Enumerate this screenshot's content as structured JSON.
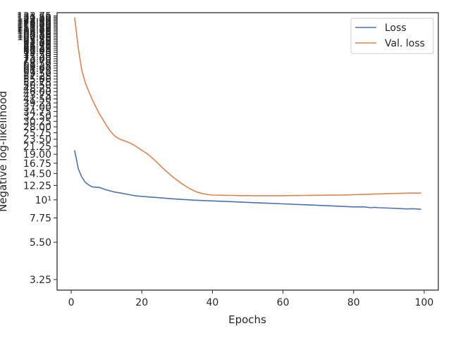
{
  "chart_data": {
    "type": "line",
    "xlabel": "Epochs",
    "ylabel": "Negative log-likelihood",
    "xlim": [
      -4,
      104
    ],
    "ylim": [
      2.8,
      140
    ],
    "yscale": "log",
    "grid": false,
    "legend_position": "top-right",
    "x_ticks": [
      0,
      20,
      40,
      60,
      80,
      100
    ],
    "x_tick_labels": [
      "0",
      "20",
      "40",
      "60",
      "80",
      "100"
    ],
    "y_ticks": [
      3.25,
      5.5,
      7.75,
      10,
      12.25,
      14.5,
      16.75,
      19,
      21.25,
      23.5,
      25.75,
      28,
      30.25,
      32.5,
      34.75,
      37,
      39.25,
      41.5,
      43.75,
      46,
      48.25,
      50.5,
      52.75,
      55,
      57.25,
      59.5,
      61.75,
      64,
      66.25,
      68.5,
      70.75,
      73,
      75.25,
      77.5,
      79.75,
      82,
      84.25,
      86.5,
      88.75,
      91,
      93.25,
      95.5,
      97.75,
      100,
      102.25,
      104.5,
      106.75,
      109,
      111.25,
      113.5,
      115.75,
      118,
      120.25,
      122.5,
      124.75,
      127,
      129.25,
      131.5,
      133.75
    ],
    "y_tick_labels": [
      "3.25",
      "5.50",
      "7.75",
      "10¹",
      "12.25",
      "14.50",
      "16.75",
      "19.00",
      "21.25",
      "23.50",
      "25.75",
      "28.00",
      "30.25",
      "32.50",
      "34.75",
      "37.00",
      "39.25",
      "41.50",
      "43.75",
      "46.00",
      "48.25",
      "50.50",
      "52.75",
      "55.00",
      "57.25",
      "59.50",
      "61.75",
      "64.00",
      "66.25",
      "68.50",
      "70.75",
      "73.00",
      "75.25",
      "77.50",
      "79.75",
      "82.00",
      "84.25",
      "86.50",
      "88.75",
      "91.00",
      "93.25",
      "95.50",
      "97.75",
      "100.00",
      "102.25",
      "104.50",
      "106.75",
      "109.00",
      "111.25",
      "113.50",
      "115.75",
      "118.00",
      "120.25",
      "122.50",
      "124.75",
      "127.00",
      "129.25",
      "131.50",
      "133.75"
    ],
    "colors": {
      "Loss": "#4c72b0",
      "Val. loss": "#dd8452",
      "axes": "#262626"
    },
    "series": [
      {
        "name": "Loss",
        "x": [
          1,
          2,
          3,
          4,
          5,
          6,
          8,
          10,
          12,
          14,
          16,
          18,
          20,
          25,
          30,
          35,
          40,
          45,
          50,
          55,
          60,
          65,
          70,
          75,
          80,
          83,
          85,
          86,
          87,
          90,
          95,
          97,
          99
        ],
        "y": [
          20.0,
          15.5,
          13.8,
          12.8,
          12.3,
          12.0,
          11.9,
          11.5,
          11.2,
          11.0,
          10.8,
          10.6,
          10.5,
          10.3,
          10.1,
          9.95,
          9.85,
          9.75,
          9.65,
          9.55,
          9.45,
          9.35,
          9.25,
          9.15,
          9.05,
          9.05,
          8.95,
          9.0,
          8.95,
          8.9,
          8.8,
          8.82,
          8.75
        ]
      },
      {
        "name": "Val. loss",
        "x": [
          1,
          2,
          3,
          4,
          5,
          6,
          7,
          8,
          9,
          10,
          11,
          12,
          13,
          14,
          15,
          16,
          17,
          18,
          19,
          20,
          21,
          22,
          23,
          24,
          25,
          26,
          27,
          28,
          29,
          30,
          31,
          32,
          33,
          34,
          35,
          36,
          37,
          38,
          39,
          40,
          42,
          44,
          46,
          48,
          50,
          52,
          54,
          56,
          58,
          60,
          62,
          64,
          66,
          68,
          70,
          72,
          74,
          76,
          78,
          80,
          82,
          84,
          86,
          88,
          90,
          92,
          94,
          96,
          98,
          99
        ],
        "y": [
          130,
          85,
          62,
          52,
          46,
          41,
          37,
          33.5,
          31,
          28.5,
          26.5,
          25,
          24,
          23.4,
          23,
          22.6,
          22.1,
          21.5,
          20.8,
          20.1,
          19.5,
          18.8,
          18.0,
          17.2,
          16.4,
          15.6,
          14.9,
          14.3,
          13.7,
          13.2,
          12.7,
          12.3,
          11.9,
          11.6,
          11.3,
          11.1,
          10.95,
          10.85,
          10.75,
          10.7,
          10.68,
          10.66,
          10.64,
          10.6,
          10.62,
          10.6,
          10.6,
          10.6,
          10.6,
          10.6,
          10.62,
          10.62,
          10.65,
          10.66,
          10.67,
          10.68,
          10.69,
          10.7,
          10.72,
          10.75,
          10.78,
          10.82,
          10.85,
          10.88,
          10.92,
          10.95,
          10.98,
          11.0,
          11.0,
          11.0
        ]
      }
    ]
  }
}
